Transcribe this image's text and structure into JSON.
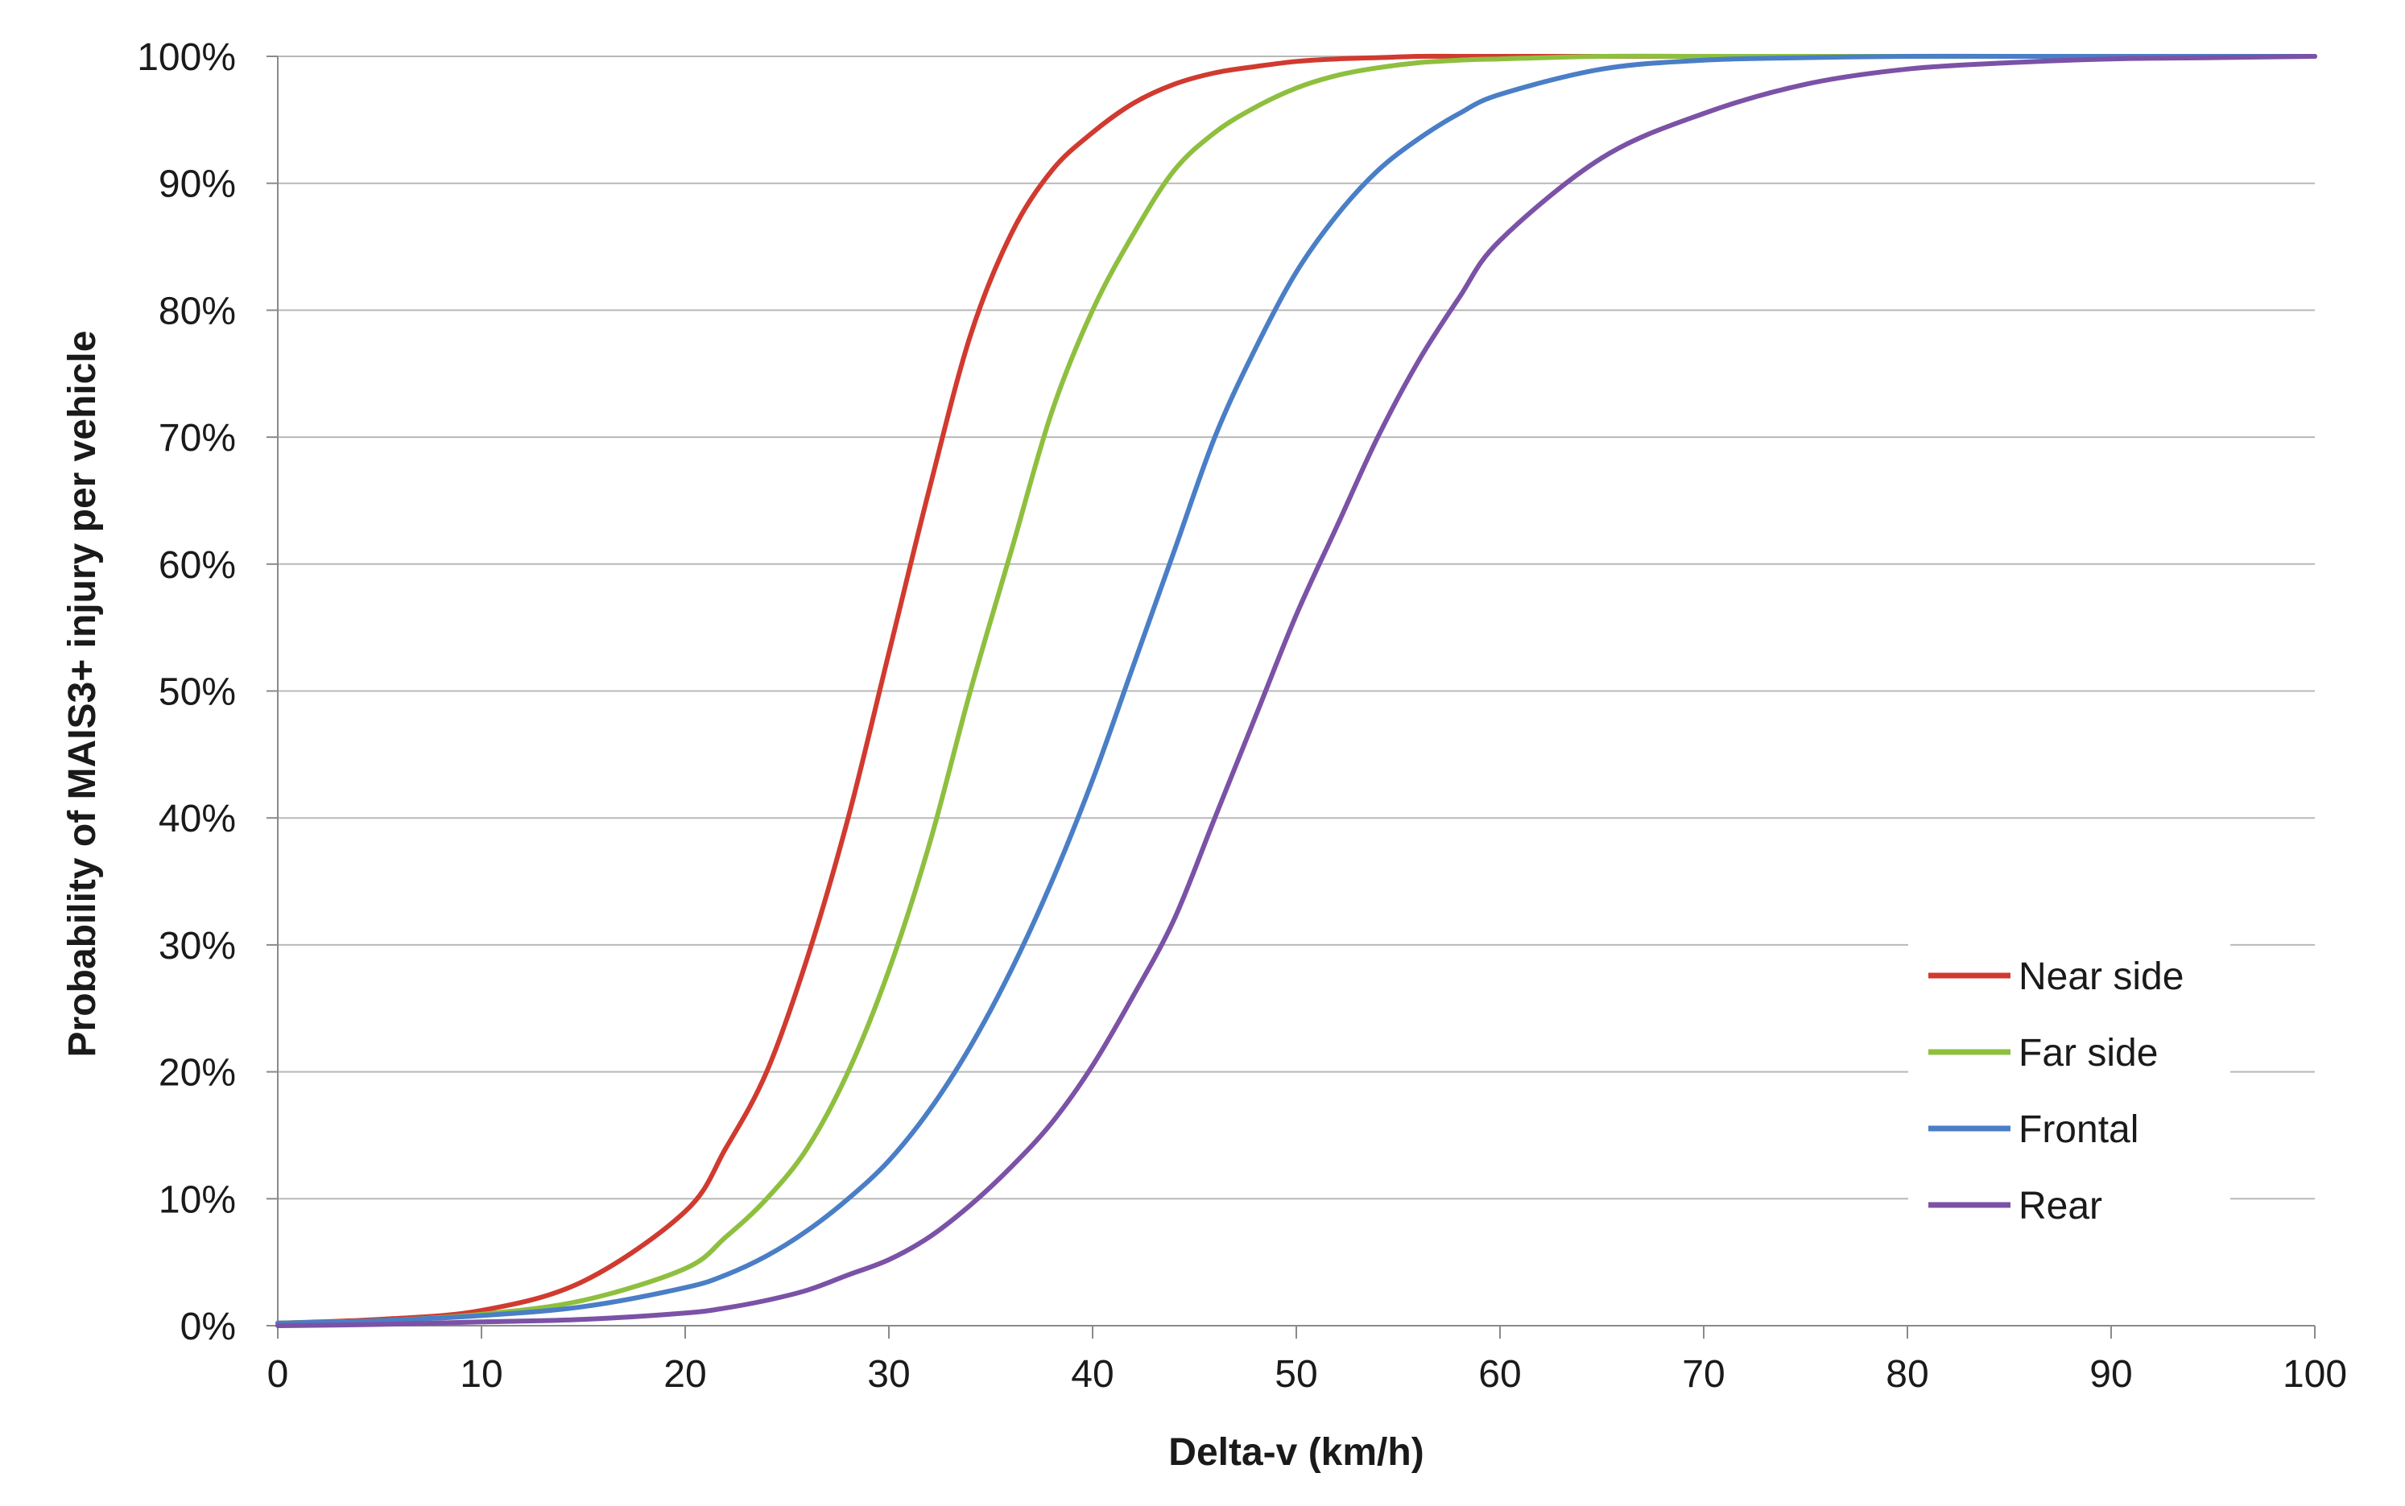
{
  "chart_data": {
    "type": "line",
    "title": "",
    "xlabel": "Delta-v (km/h)",
    "ylabel": "Probability of MAIS3+ injury per vehicle",
    "xlim": [
      0,
      100
    ],
    "ylim": [
      0,
      100
    ],
    "x_ticks": [
      "0",
      "10",
      "20",
      "30",
      "40",
      "50",
      "60",
      "70",
      "80",
      "90",
      "100"
    ],
    "y_ticks": [
      "0%",
      "10%",
      "20%",
      "30%",
      "40%",
      "50%",
      "60%",
      "70%",
      "80%",
      "90%",
      "100%"
    ],
    "grid": "horizontal",
    "legend_position": "bottom-right",
    "x": [
      0,
      5,
      10,
      15,
      20,
      22,
      24,
      26,
      28,
      30,
      32,
      34,
      36,
      38,
      40,
      42,
      44,
      46,
      48,
      50,
      52,
      54,
      56,
      58,
      60,
      65,
      70,
      75,
      80,
      85,
      90,
      95,
      100
    ],
    "series": [
      {
        "name": "Near side",
        "color": "#d13a2f",
        "values": [
          0.2,
          0.5,
          1.2,
          3.5,
          9,
          14,
          20,
          29,
          40,
          53,
          66,
          78,
          86,
          91,
          94,
          96.3,
          97.8,
          98.7,
          99.2,
          99.6,
          99.8,
          99.9,
          100,
          100,
          100,
          100,
          100,
          100,
          100,
          100,
          100,
          100,
          100
        ]
      },
      {
        "name": "Far side",
        "color": "#8ebf3f",
        "values": [
          0.2,
          0.4,
          0.9,
          2,
          4.5,
          7,
          10,
          14,
          20,
          28,
          38,
          50,
          61,
          72,
          80,
          86,
          91,
          94,
          96,
          97.5,
          98.5,
          99.1,
          99.5,
          99.7,
          99.8,
          100,
          100,
          100,
          100,
          100,
          100,
          100,
          100
        ]
      },
      {
        "name": "Frontal",
        "color": "#4a7ec6",
        "values": [
          0.2,
          0.4,
          0.8,
          1.5,
          3,
          4,
          5.5,
          7.5,
          10,
          13,
          17,
          22,
          28,
          35,
          43,
          52,
          61,
          70,
          77,
          83,
          87.5,
          91,
          93.5,
          95.5,
          97,
          99,
          99.7,
          99.9,
          100,
          100,
          100,
          100,
          100
        ]
      },
      {
        "name": "Rear",
        "color": "#7b52a6",
        "values": [
          0,
          0.1,
          0.3,
          0.5,
          1,
          1.4,
          2,
          2.8,
          4,
          5.2,
          7,
          9.5,
          12.5,
          16,
          20.5,
          26,
          32,
          40,
          48,
          56,
          63,
          70,
          76,
          81,
          85.5,
          92,
          95.5,
          97.8,
          99,
          99.5,
          99.8,
          99.9,
          100
        ]
      }
    ]
  }
}
